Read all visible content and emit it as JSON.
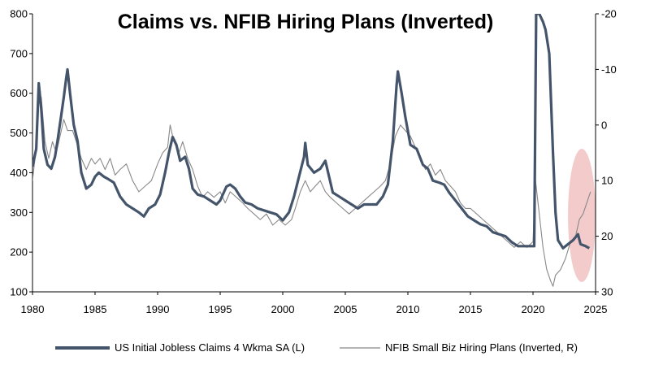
{
  "chart_data": {
    "type": "line",
    "title": "Claims vs. NFIB Hiring Plans (Inverted)",
    "xlabel": "",
    "ylabel": "",
    "x_ticks": [
      1980,
      1985,
      1990,
      1995,
      2000,
      2005,
      2010,
      2015,
      2020,
      2025
    ],
    "xlim": [
      1980,
      2025
    ],
    "y_left": {
      "lim": [
        100,
        800
      ],
      "ticks": [
        100,
        200,
        300,
        400,
        500,
        600,
        700,
        800
      ]
    },
    "y_right": {
      "lim": [
        -20,
        30
      ],
      "inverted": true,
      "ticks": [
        -20,
        -10,
        0,
        10,
        20,
        30
      ]
    },
    "grid": false,
    "legend_position": "bottom",
    "highlight_color": "#e9a0a0",
    "series": [
      {
        "name": "US Initial Jobless Claims 4 Wkma SA (L)",
        "axis": "left",
        "color": "#44546a",
        "points": [
          [
            1980.0,
            415
          ],
          [
            1980.3,
            460
          ],
          [
            1980.5,
            625
          ],
          [
            1980.7,
            560
          ],
          [
            1980.9,
            460
          ],
          [
            1981.2,
            420
          ],
          [
            1981.5,
            410
          ],
          [
            1981.8,
            440
          ],
          [
            1982.0,
            480
          ],
          [
            1982.3,
            545
          ],
          [
            1982.5,
            590
          ],
          [
            1982.7,
            640
          ],
          [
            1982.8,
            660
          ],
          [
            1983.0,
            600
          ],
          [
            1983.3,
            520
          ],
          [
            1983.6,
            480
          ],
          [
            1983.9,
            400
          ],
          [
            1984.3,
            360
          ],
          [
            1984.7,
            370
          ],
          [
            1985.0,
            390
          ],
          [
            1985.3,
            400
          ],
          [
            1985.7,
            390
          ],
          [
            1986.0,
            385
          ],
          [
            1986.5,
            375
          ],
          [
            1987.0,
            340
          ],
          [
            1987.5,
            320
          ],
          [
            1988.0,
            310
          ],
          [
            1988.5,
            300
          ],
          [
            1988.9,
            290
          ],
          [
            1989.3,
            310
          ],
          [
            1989.8,
            320
          ],
          [
            1990.2,
            345
          ],
          [
            1990.6,
            400
          ],
          [
            1990.9,
            450
          ],
          [
            1991.2,
            490
          ],
          [
            1991.5,
            470
          ],
          [
            1991.8,
            430
          ],
          [
            1992.2,
            440
          ],
          [
            1992.5,
            410
          ],
          [
            1992.8,
            360
          ],
          [
            1993.2,
            345
          ],
          [
            1993.7,
            340
          ],
          [
            1994.2,
            330
          ],
          [
            1994.7,
            320
          ],
          [
            1995.0,
            330
          ],
          [
            1995.5,
            365
          ],
          [
            1995.8,
            370
          ],
          [
            1996.2,
            360
          ],
          [
            1996.6,
            340
          ],
          [
            1997.0,
            325
          ],
          [
            1997.5,
            320
          ],
          [
            1998.0,
            310
          ],
          [
            1998.5,
            305
          ],
          [
            1999.0,
            300
          ],
          [
            1999.5,
            295
          ],
          [
            2000.0,
            280
          ],
          [
            2000.5,
            300
          ],
          [
            2000.9,
            340
          ],
          [
            2001.3,
            390
          ],
          [
            2001.7,
            440
          ],
          [
            2001.8,
            475
          ],
          [
            2002.0,
            420
          ],
          [
            2002.5,
            400
          ],
          [
            2003.0,
            410
          ],
          [
            2003.4,
            430
          ],
          [
            2003.7,
            390
          ],
          [
            2004.0,
            350
          ],
          [
            2004.5,
            340
          ],
          [
            2005.0,
            330
          ],
          [
            2005.5,
            320
          ],
          [
            2006.0,
            310
          ],
          [
            2006.5,
            320
          ],
          [
            2007.0,
            320
          ],
          [
            2007.5,
            320
          ],
          [
            2008.0,
            340
          ],
          [
            2008.4,
            370
          ],
          [
            2008.8,
            480
          ],
          [
            2009.1,
            620
          ],
          [
            2009.2,
            655
          ],
          [
            2009.5,
            600
          ],
          [
            2009.8,
            540
          ],
          [
            2010.2,
            470
          ],
          [
            2010.7,
            460
          ],
          [
            2011.2,
            420
          ],
          [
            2011.6,
            410
          ],
          [
            2012.0,
            380
          ],
          [
            2012.5,
            375
          ],
          [
            2012.9,
            370
          ],
          [
            2013.3,
            350
          ],
          [
            2013.8,
            330
          ],
          [
            2014.3,
            310
          ],
          [
            2014.8,
            290
          ],
          [
            2015.3,
            280
          ],
          [
            2015.8,
            270
          ],
          [
            2016.3,
            265
          ],
          [
            2016.8,
            250
          ],
          [
            2017.3,
            245
          ],
          [
            2017.8,
            240
          ],
          [
            2018.3,
            225
          ],
          [
            2018.8,
            215
          ],
          [
            2019.3,
            215
          ],
          [
            2019.8,
            215
          ],
          [
            2020.1,
            215
          ],
          [
            2020.25,
            800
          ],
          [
            2020.5,
            800
          ],
          [
            2020.8,
            780
          ],
          [
            2021.0,
            760
          ],
          [
            2021.3,
            700
          ],
          [
            2021.6,
            450
          ],
          [
            2021.8,
            300
          ],
          [
            2022.0,
            230
          ],
          [
            2022.4,
            210
          ],
          [
            2022.8,
            220
          ],
          [
            2023.2,
            230
          ],
          [
            2023.6,
            245
          ],
          [
            2023.8,
            220
          ],
          [
            2024.2,
            215
          ],
          [
            2024.5,
            210
          ]
        ]
      },
      {
        "name": "NFIB Small Biz Hiring Plans (Inverted, R)",
        "axis": "right",
        "color": "#888888",
        "points": [
          [
            1980.0,
            10
          ],
          [
            1980.3,
            4
          ],
          [
            1980.5,
            -5
          ],
          [
            1980.7,
            -5
          ],
          [
            1981.0,
            3
          ],
          [
            1981.3,
            6
          ],
          [
            1981.6,
            3
          ],
          [
            1981.9,
            5
          ],
          [
            1982.2,
            2
          ],
          [
            1982.5,
            -1
          ],
          [
            1982.8,
            1
          ],
          [
            1983.2,
            1
          ],
          [
            1983.5,
            3
          ],
          [
            1983.9,
            6
          ],
          [
            1984.3,
            8
          ],
          [
            1984.7,
            6
          ],
          [
            1985.0,
            7
          ],
          [
            1985.4,
            6
          ],
          [
            1985.8,
            8
          ],
          [
            1986.2,
            6
          ],
          [
            1986.6,
            9
          ],
          [
            1987.0,
            8
          ],
          [
            1987.5,
            7
          ],
          [
            1988.0,
            10
          ],
          [
            1988.5,
            12
          ],
          [
            1989.0,
            11
          ],
          [
            1989.5,
            10
          ],
          [
            1990.0,
            7
          ],
          [
            1990.4,
            5
          ],
          [
            1990.8,
            4
          ],
          [
            1991.0,
            0
          ],
          [
            1991.3,
            3
          ],
          [
            1991.7,
            5
          ],
          [
            1992.0,
            3
          ],
          [
            1992.4,
            6
          ],
          [
            1992.8,
            8
          ],
          [
            1993.2,
            11
          ],
          [
            1993.6,
            13
          ],
          [
            1994.0,
            12
          ],
          [
            1994.5,
            13
          ],
          [
            1995.0,
            12
          ],
          [
            1995.4,
            14
          ],
          [
            1995.8,
            12
          ],
          [
            1996.3,
            13
          ],
          [
            1996.8,
            14
          ],
          [
            1997.2,
            15
          ],
          [
            1997.7,
            16
          ],
          [
            1998.2,
            17
          ],
          [
            1998.7,
            16
          ],
          [
            1999.2,
            18
          ],
          [
            1999.7,
            17
          ],
          [
            2000.2,
            18
          ],
          [
            2000.7,
            17
          ],
          [
            2001.0,
            15
          ],
          [
            2001.4,
            12
          ],
          [
            2001.8,
            10
          ],
          [
            2002.2,
            12
          ],
          [
            2002.6,
            11
          ],
          [
            2003.0,
            10
          ],
          [
            2003.4,
            12
          ],
          [
            2003.8,
            13
          ],
          [
            2004.3,
            14
          ],
          [
            2004.8,
            15
          ],
          [
            2005.3,
            16
          ],
          [
            2005.8,
            15
          ],
          [
            2006.3,
            14
          ],
          [
            2006.8,
            13
          ],
          [
            2007.3,
            12
          ],
          [
            2007.8,
            11
          ],
          [
            2008.2,
            10
          ],
          [
            2008.6,
            7
          ],
          [
            2009.0,
            2
          ],
          [
            2009.4,
            0
          ],
          [
            2009.8,
            1
          ],
          [
            2010.2,
            2
          ],
          [
            2010.6,
            4
          ],
          [
            2011.0,
            6
          ],
          [
            2011.4,
            8
          ],
          [
            2011.8,
            7
          ],
          [
            2012.2,
            9
          ],
          [
            2012.6,
            8
          ],
          [
            2013.0,
            10
          ],
          [
            2013.4,
            11
          ],
          [
            2013.8,
            12
          ],
          [
            2014.2,
            14
          ],
          [
            2014.6,
            15
          ],
          [
            2015.0,
            15
          ],
          [
            2015.5,
            16
          ],
          [
            2016.0,
            17
          ],
          [
            2016.5,
            18
          ],
          [
            2017.0,
            19
          ],
          [
            2017.5,
            20
          ],
          [
            2018.0,
            21
          ],
          [
            2018.5,
            22
          ],
          [
            2019.0,
            21
          ],
          [
            2019.5,
            22
          ],
          [
            2020.0,
            21
          ],
          [
            2020.2,
            10
          ],
          [
            2020.5,
            16
          ],
          [
            2020.8,
            22
          ],
          [
            2021.1,
            26
          ],
          [
            2021.4,
            28
          ],
          [
            2021.6,
            29
          ],
          [
            2021.8,
            27
          ],
          [
            2022.2,
            26
          ],
          [
            2022.6,
            24
          ],
          [
            2023.0,
            21
          ],
          [
            2023.4,
            20
          ],
          [
            2023.7,
            17
          ],
          [
            2024.0,
            16
          ],
          [
            2024.3,
            14
          ],
          [
            2024.6,
            12
          ]
        ]
      }
    ]
  }
}
